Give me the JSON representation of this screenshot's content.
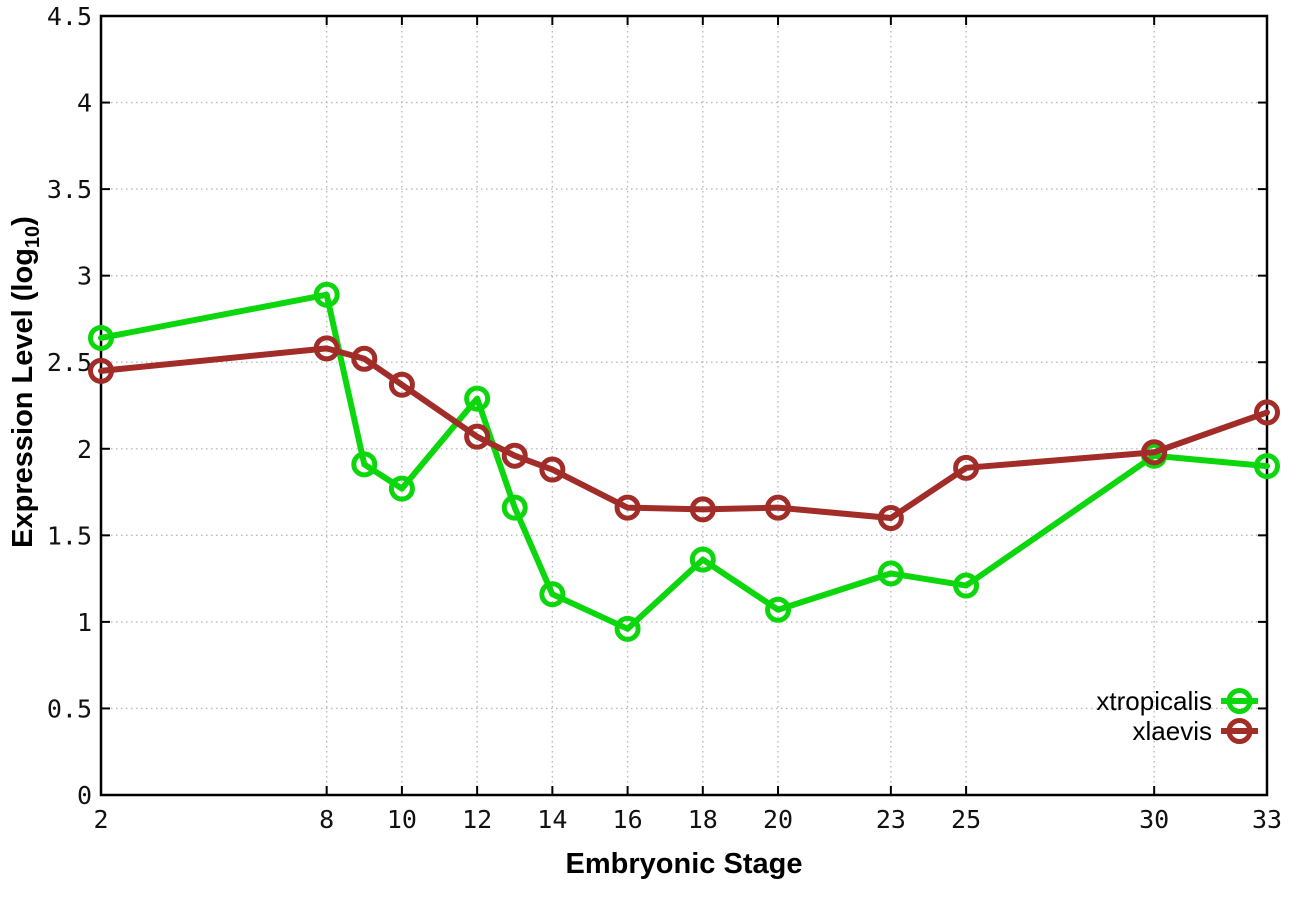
{
  "chart_data": {
    "type": "line",
    "title": "",
    "xlabel": "Embryonic Stage",
    "ylabel": "Expression Level (log10)",
    "ylabel_parts": {
      "prefix": "Expression Level (log",
      "sub": "10",
      "suffix": ")"
    },
    "x": [
      2,
      8,
      9,
      10,
      12,
      13,
      14,
      16,
      18,
      20,
      23,
      25,
      30,
      33
    ],
    "series": [
      {
        "name": "xtropicalis",
        "color": "#0cd60c",
        "values": [
          2.64,
          2.89,
          1.91,
          1.77,
          2.29,
          1.66,
          1.16,
          0.96,
          1.36,
          1.07,
          1.28,
          1.21,
          1.96,
          1.9
        ]
      },
      {
        "name": "xlaevis",
        "color": "#a12c28",
        "values": [
          2.45,
          2.58,
          2.52,
          2.37,
          2.07,
          1.96,
          1.88,
          1.66,
          1.65,
          1.66,
          1.6,
          1.89,
          1.98,
          2.21
        ]
      }
    ],
    "xlim": [
      2,
      33
    ],
    "ylim": [
      0,
      4.5
    ],
    "x_ticks": [
      2,
      8,
      10,
      12,
      14,
      16,
      18,
      20,
      23,
      25,
      30,
      33
    ],
    "x_tick_labels": [
      "2",
      "8",
      "10",
      "12",
      "14",
      "16",
      "18",
      "20",
      "23",
      "25",
      "30",
      "33"
    ],
    "y_ticks": [
      0,
      0.5,
      1,
      1.5,
      2,
      2.5,
      3,
      3.5,
      4,
      4.5
    ],
    "y_tick_labels": [
      "0",
      "0.5",
      "1",
      "1.5",
      "2",
      "2.5",
      "3",
      "3.5",
      "4",
      "4.5"
    ],
    "grid": true,
    "grid_style": "dotted",
    "legend_position": "bottom-right",
    "legend_entries": [
      "xtropicalis",
      "xlaevis"
    ],
    "marker": "open-circle",
    "colors": {
      "background": "#ffffff",
      "border": "#000000",
      "grid": "#b9b9b9",
      "tick_label": "#111111"
    }
  }
}
